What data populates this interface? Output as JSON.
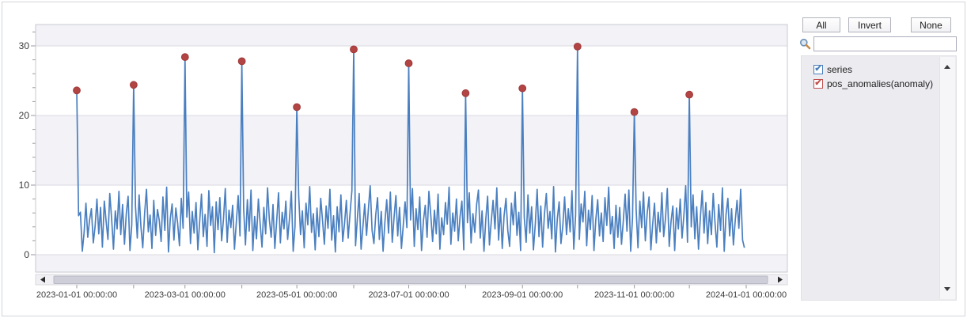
{
  "window": {
    "background": "#ffffff",
    "border_color": "#d4d5dc"
  },
  "toolbar": {
    "all_label": "All",
    "invert_label": "Invert",
    "none_label": "None"
  },
  "search": {
    "value": "",
    "placeholder": ""
  },
  "legend": {
    "check_glyph": "✔",
    "items": [
      {
        "label": "series",
        "checked": true,
        "color": "#4a7ebb"
      },
      {
        "label": "pos_anomalies(anomaly)",
        "checked": true,
        "color": "#c0504d"
      }
    ]
  },
  "icons": {
    "search_icon": "magnifier",
    "legend_scroll_up_icon": "triangle-up",
    "legend_scroll_down_icon": "triangle-down",
    "hscroll_left_icon": "triangle-left",
    "hscroll_right_icon": "triangle-right"
  },
  "colors": {
    "series_line": "#4a7fc0",
    "anomaly_marker": "#b24444",
    "anomaly_marker_edge": "#9e3a3a",
    "band_fill": "#f2f2f7",
    "grid_line": "#d9dae2",
    "plot_border": "#c8c9d0",
    "axis_text": "#3a3a3a",
    "tick_mark": "#9a9aa2",
    "scroll_track": "#f0f0f4",
    "scroll_track_border": "#d8d8de",
    "scroll_thumb": "#cdced8",
    "scroll_thumb_border": "#b8b9c5"
  },
  "chart_data": {
    "type": "line",
    "title": "",
    "xlabel": "",
    "ylabel": "",
    "legend_position": "right-panel",
    "grid": true,
    "x_axis": {
      "start_date": "2023-01-01",
      "interval": "1 day",
      "tick_labels": [
        "2023-01-01 00:00:00",
        "2023-03-01 00:00:00",
        "2023-05-01 00:00:00",
        "2023-07-01 00:00:00",
        "2023-09-01 00:00:00",
        "2023-11-01 00:00:00",
        "2024-01-01 00:00:00"
      ],
      "minor_ticks": "monthly"
    },
    "y_axis": {
      "tick_labels": [
        "0",
        "10",
        "20",
        "30"
      ],
      "ticks": [
        0,
        10,
        20,
        30
      ],
      "minor_tick_step": 2,
      "visible_range": [
        -2.4,
        33.1
      ]
    },
    "month_start_dates": [
      "2023-01-01",
      "2023-02-01",
      "2023-03-01",
      "2023-04-01",
      "2023-05-01",
      "2023-06-01",
      "2023-07-01",
      "2023-08-01",
      "2023-09-01",
      "2023-10-01",
      "2023-11-01",
      "2023-12-01"
    ],
    "series": [
      {
        "name": "series",
        "type": "line",
        "color": "#4a7fc0",
        "values_by_month": [
          [
            23.6,
            5.6,
            6.1,
            0.5,
            3.2,
            7.4,
            2.5,
            5.0,
            6.6,
            1.7,
            4.1,
            8.0,
            3.0,
            6.8,
            1.1,
            7.7,
            4.8,
            2.2,
            8.8,
            5.3,
            0.8,
            6.3,
            3.7,
            9.1,
            2.9,
            7.2,
            1.5,
            5.9,
            8.4,
            0.6,
            4.3
          ],
          [
            24.4,
            7.0,
            2.4,
            8.6,
            4.0,
            1.0,
            6.0,
            9.4,
            3.3,
            5.7,
            0.9,
            7.8,
            2.8,
            6.5,
            4.9,
            1.9,
            8.3,
            3.5,
            9.7,
            0.4,
            5.2,
            7.3,
            2.1,
            6.7,
            4.5,
            1.3,
            8.1,
            3.8
          ],
          [
            28.4,
            5.4,
            9.0,
            1.6,
            6.2,
            3.1,
            7.5,
            0.7,
            4.7,
            8.7,
            2.6,
            5.8,
            1.2,
            9.2,
            4.2,
            6.9,
            0.3,
            7.6,
            3.6,
            8.2,
            2.0,
            5.1,
            9.5,
            1.8,
            6.4,
            3.9,
            7.1,
            0.8,
            4.6,
            8.5,
            2.7
          ],
          [
            27.8,
            6.6,
            1.4,
            7.9,
            3.4,
            9.3,
            0.6,
            5.5,
            2.3,
            8.0,
            4.4,
            1.1,
            6.8,
            3.0,
            9.6,
            5.0,
            2.5,
            7.2,
            0.9,
            4.8,
            8.9,
            1.7,
            6.1,
            3.7,
            7.7,
            2.2,
            5.3,
            9.1,
            0.5,
            4.1
          ],
          [
            21.2,
            8.4,
            2.9,
            6.3,
            1.0,
            7.4,
            4.3,
            9.8,
            3.2,
            5.9,
            0.7,
            6.7,
            2.6,
            8.1,
            4.9,
            1.5,
            7.0,
            3.8,
            9.4,
            2.1,
            5.6,
            0.4,
            6.9,
            3.3,
            8.6,
            1.9,
            4.5,
            7.8,
            2.4,
            6.0,
            9.2
          ],
          [
            29.5,
            1.3,
            5.2,
            8.8,
            0.8,
            4.0,
            7.3,
            2.8,
            6.5,
            9.9,
            3.5,
            1.6,
            5.7,
            8.2,
            2.2,
            6.2,
            0.5,
            4.7,
            7.9,
            3.1,
            9.0,
            1.8,
            5.4,
            8.5,
            2.7,
            6.8,
            0.9,
            4.2,
            7.6,
            3.9
          ],
          [
            27.5,
            5.0,
            9.5,
            1.2,
            6.6,
            3.6,
            8.3,
            0.6,
            4.9,
            7.1,
            2.5,
            9.1,
            5.8,
            1.9,
            6.4,
            3.0,
            8.7,
            0.8,
            5.3,
            2.9,
            7.5,
            4.4,
            9.7,
            1.5,
            6.0,
            3.4,
            8.0,
            2.0,
            5.5,
            7.7,
            0.7
          ],
          [
            23.2,
            4.6,
            8.9,
            1.7,
            5.9,
            3.2,
            7.2,
            9.3,
            2.4,
            6.3,
            0.5,
            5.1,
            8.4,
            1.4,
            4.8,
            7.8,
            3.7,
            9.6,
            2.1,
            6.7,
            0.9,
            5.6,
            8.1,
            3.5,
            1.2,
            7.4,
            4.3,
            9.0,
            2.8,
            6.1,
            0.6
          ],
          [
            23.9,
            5.4,
            1.8,
            8.6,
            3.1,
            6.9,
            0.7,
            4.5,
            9.4,
            2.6,
            7.0,
            1.1,
            5.8,
            8.8,
            3.8,
            6.2,
            2.3,
            9.8,
            0.4,
            5.2,
            7.6,
            1.6,
            4.1,
            8.3,
            2.9,
            6.6,
            3.3,
            9.2,
            0.8,
            5.7
          ],
          [
            29.9,
            2.2,
            7.3,
            4.7,
            9.1,
            1.3,
            6.4,
            3.6,
            8.5,
            0.6,
            5.0,
            7.9,
            2.7,
            6.0,
            1.9,
            8.2,
            4.2,
            9.7,
            3.0,
            5.5,
            0.9,
            7.1,
            2.5,
            6.8,
            1.5,
            4.9,
            8.7,
            3.4,
            9.3,
            0.5,
            5.3
          ],
          [
            20.5,
            6.5,
            1.0,
            7.7,
            3.9,
            9.0,
            2.0,
            5.9,
            8.3,
            0.7,
            4.4,
            7.4,
            1.7,
            6.1,
            3.3,
            8.9,
            2.6,
            5.2,
            9.5,
            1.2,
            4.8,
            7.0,
            0.6,
            6.7,
            3.7,
            8.0,
            2.4,
            5.6,
            9.9,
            1.8
          ],
          [
            23.0,
            4.0,
            8.6,
            2.3,
            6.9,
            0.8,
            5.4,
            9.2,
            3.1,
            7.5,
            1.6,
            6.3,
            2.9,
            8.8,
            4.5,
            1.1,
            7.2,
            3.5,
            9.6,
            0.5,
            5.8,
            8.1,
            2.7,
            6.6,
            1.4,
            4.9,
            7.8,
            3.8,
            9.4,
            2.1,
            1.0
          ]
        ]
      },
      {
        "name": "pos_anomalies(anomaly)",
        "type": "scatter",
        "marker": "circle",
        "color": "#b24444",
        "points": [
          {
            "date": "2023-01-01",
            "value": 23.6
          },
          {
            "date": "2023-02-01",
            "value": 24.4
          },
          {
            "date": "2023-03-01",
            "value": 28.4
          },
          {
            "date": "2023-04-01",
            "value": 27.8
          },
          {
            "date": "2023-05-01",
            "value": 21.2
          },
          {
            "date": "2023-06-01",
            "value": 29.5
          },
          {
            "date": "2023-07-01",
            "value": 27.5
          },
          {
            "date": "2023-08-01",
            "value": 23.2
          },
          {
            "date": "2023-09-01",
            "value": 23.9
          },
          {
            "date": "2023-10-01",
            "value": 29.9
          },
          {
            "date": "2023-11-01",
            "value": 20.5
          },
          {
            "date": "2023-12-01",
            "value": 23.0
          }
        ]
      }
    ]
  }
}
